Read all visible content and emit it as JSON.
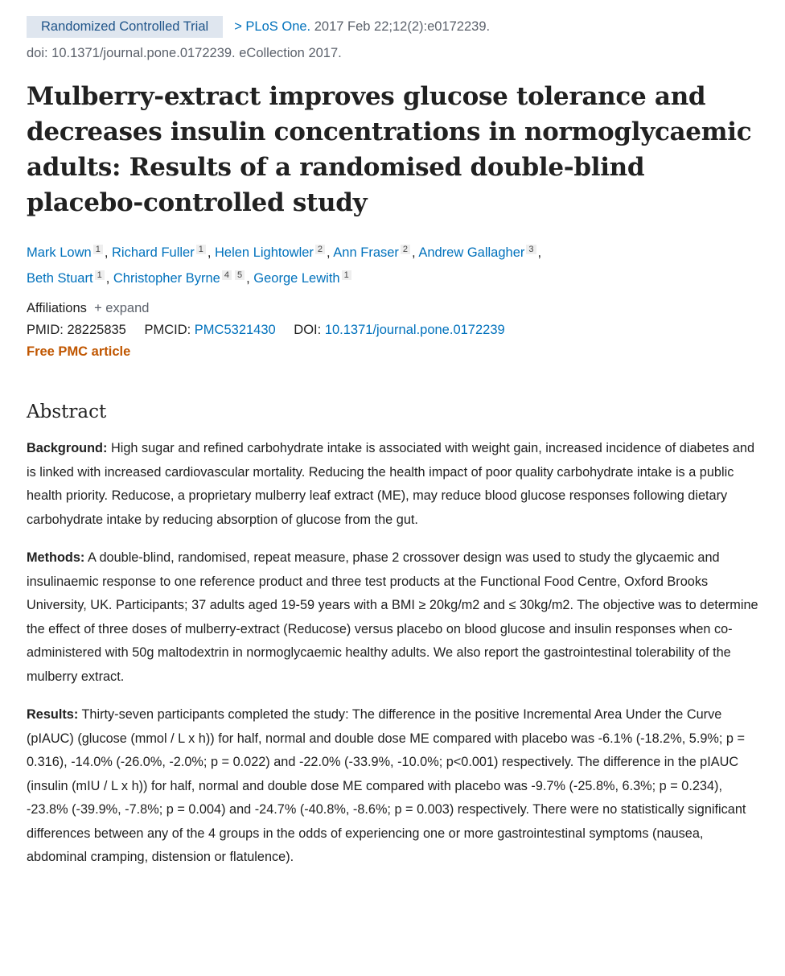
{
  "header": {
    "article_type": "Randomized Controlled Trial",
    "chevron": ">",
    "journal": "PLoS One.",
    "citation": "2017 Feb 22;12(2):e0172239.",
    "doi_line": "doi: 10.1371/journal.pone.0172239. eCollection 2017."
  },
  "title": "Mulberry-extract improves glucose tolerance and decreases insulin concentrations in normoglycaemic adults: Results of a randomised double-blind placebo-controlled study",
  "authors": [
    {
      "name": "Mark Lown",
      "aff": [
        "1"
      ]
    },
    {
      "name": "Richard Fuller",
      "aff": [
        "1"
      ]
    },
    {
      "name": "Helen Lightowler",
      "aff": [
        "2"
      ]
    },
    {
      "name": "Ann Fraser",
      "aff": [
        "2"
      ]
    },
    {
      "name": "Andrew Gallagher",
      "aff": [
        "3"
      ]
    },
    {
      "name": "Beth Stuart",
      "aff": [
        "1"
      ]
    },
    {
      "name": "Christopher Byrne",
      "aff": [
        "4",
        "5"
      ]
    },
    {
      "name": "George Lewith",
      "aff": [
        "1"
      ]
    }
  ],
  "affiliations": {
    "label": "Affiliations",
    "expand": "+ expand"
  },
  "ids": {
    "pmid_label": "PMID:",
    "pmid": "28225835",
    "pmcid_label": "PMCID:",
    "pmcid": "PMC5321430",
    "doi_label": "DOI:",
    "doi": "10.1371/journal.pone.0172239"
  },
  "free_pmc": "Free PMC article",
  "abstract": {
    "heading": "Abstract",
    "sections": [
      {
        "label": "Background:",
        "text": " High sugar and refined carbohydrate intake is associated with weight gain, increased incidence of diabetes and is linked with increased cardiovascular mortality. Reducing the health impact of poor quality carbohydrate intake is a public health priority. Reducose, a proprietary mulberry leaf extract (ME), may reduce blood glucose responses following dietary carbohydrate intake by reducing absorption of glucose from the gut."
      },
      {
        "label": "Methods:",
        "text": " A double-blind, randomised, repeat measure, phase 2 crossover design was used to study the glycaemic and insulinaemic response to one reference product and three test products at the Functional Food Centre, Oxford Brooks University, UK. Participants; 37 adults aged 19-59 years with a BMI ≥ 20kg/m2 and ≤ 30kg/m2. The objective was to determine the effect of three doses of mulberry-extract (Reducose) versus placebo on blood glucose and insulin responses when co-administered with 50g maltodextrin in normoglycaemic healthy adults. We also report the gastrointestinal tolerability of the mulberry extract."
      },
      {
        "label": "Results:",
        "text": " Thirty-seven participants completed the study: The difference in the positive Incremental Area Under the Curve (pIAUC) (glucose (mmol / L x h)) for half, normal and double dose ME compared with placebo was -6.1% (-18.2%, 5.9%; p = 0.316), -14.0% (-26.0%, -2.0%; p = 0.022) and -22.0% (-33.9%, -10.0%; p<0.001) respectively. The difference in the pIAUC (insulin (mIU / L x h)) for half, normal and double dose ME compared with placebo was -9.7% (-25.8%, 6.3%; p = 0.234), -23.8% (-39.9%, -7.8%; p = 0.004) and -24.7% (-40.8%, -8.6%; p = 0.003) respectively. There were no statistically significant differences between any of the 4 groups in the odds of experiencing one or more gastrointestinal symptoms (nausea, abdominal cramping, distension or flatulence)."
      }
    ]
  }
}
